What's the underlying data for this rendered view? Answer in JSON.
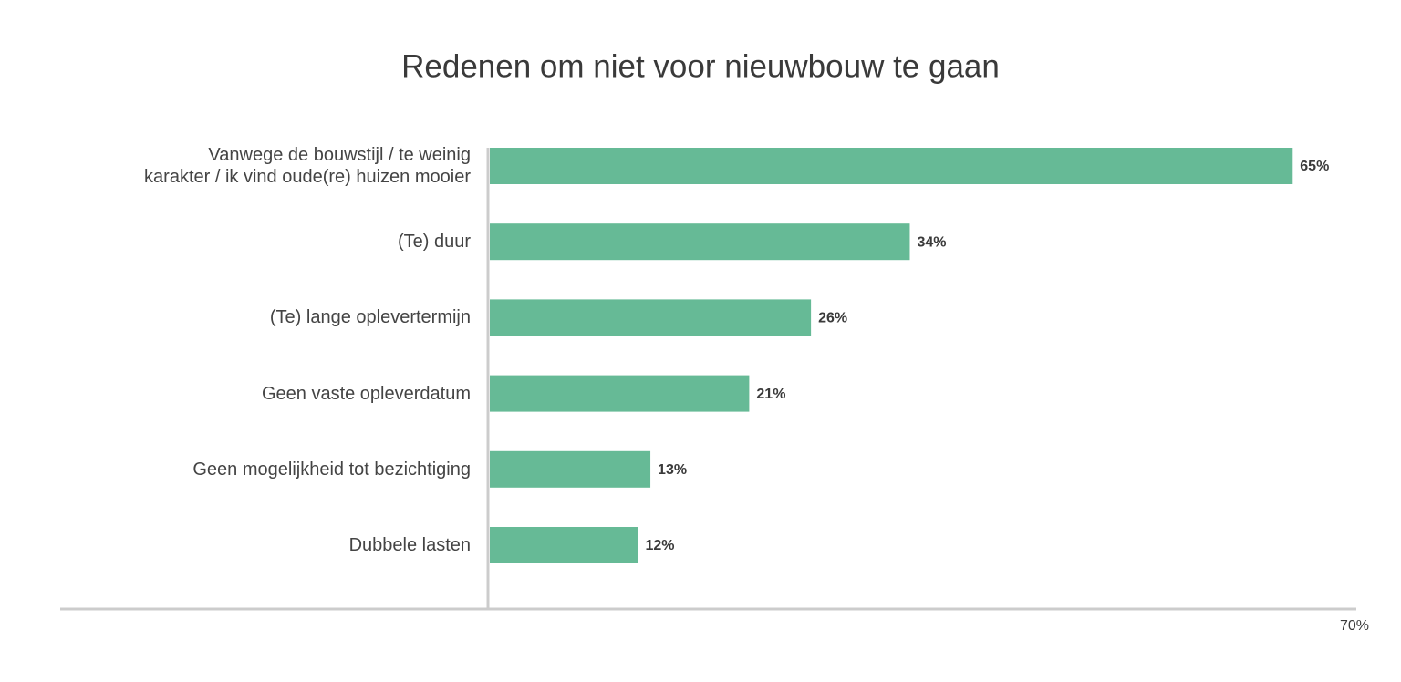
{
  "chart_data": {
    "type": "bar",
    "orientation": "horizontal",
    "title": "Redenen om niet voor nieuwbouw te gaan",
    "categories": [
      "Vanwege de bouwstijl / te weinig karakter / ik vind oude(re) huizen mooier",
      "(Te) duur",
      "(Te) lange oplevertermijn",
      "Geen vaste opleverdatum",
      "Geen mogelijkheid tot bezichtiging",
      "Dubbele lasten"
    ],
    "values": [
      65,
      34,
      26,
      21,
      13,
      12
    ],
    "value_labels": [
      "65%",
      "34%",
      "26%",
      "21%",
      "13%",
      "12%"
    ],
    "color": "#66ba96",
    "xlim": [
      0,
      70
    ],
    "xticks": [
      {
        "value": 70,
        "label": "70%"
      }
    ]
  }
}
